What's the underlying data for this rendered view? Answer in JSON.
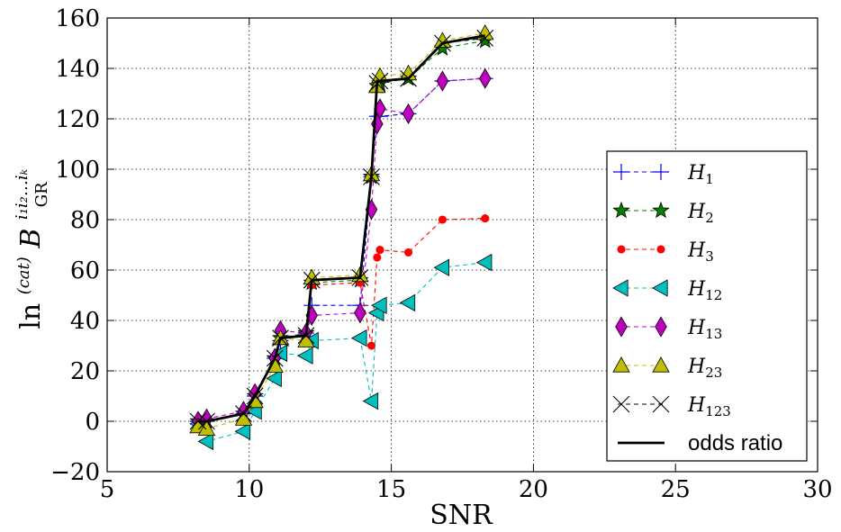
{
  "chart_data": {
    "type": "line",
    "xlabel": "SNR",
    "ylabel": "ln (cat) B_GR^(i1 i2 ... ik)",
    "ylabel_parts": {
      "ln": "ln",
      "sup": "(cat)",
      "B": "B",
      "sub": "GR",
      "index": "i₁i₂…iₖ"
    },
    "xlim": [
      5,
      30
    ],
    "ylim": [
      -20,
      160
    ],
    "xticks": [
      5,
      10,
      15,
      20,
      25,
      30
    ],
    "yticks": [
      -20,
      0,
      20,
      40,
      60,
      80,
      100,
      120,
      140,
      160
    ],
    "xtick_labels": [
      "5",
      "10",
      "15",
      "20",
      "25",
      "30"
    ],
    "ytick_labels": [
      "−20",
      "0",
      "20",
      "40",
      "60",
      "80",
      "100",
      "120",
      "140",
      "160"
    ],
    "grid": true,
    "legend_position": "lower-right",
    "x": [
      8.2,
      8.5,
      9.8,
      10.2,
      10.9,
      11.1,
      12.0,
      12.2,
      13.9,
      14.3,
      14.5,
      14.6,
      15.6,
      16.8,
      18.3
    ],
    "series": [
      {
        "name": "H1",
        "label_base": "H",
        "label_sub": "1",
        "marker": "plus",
        "color": "#0000ff",
        "values": [
          0,
          0,
          3,
          10,
          25,
          32,
          35,
          46,
          46,
          97,
          121,
          121,
          122,
          135,
          136
        ]
      },
      {
        "name": "H2",
        "label_base": "H",
        "label_sub": "2",
        "marker": "star",
        "color": "#007f00",
        "values": [
          0,
          0,
          3,
          10,
          25,
          33,
          35,
          55,
          56,
          97,
          133,
          134,
          136,
          148,
          151
        ]
      },
      {
        "name": "H3",
        "label_base": "H",
        "label_sub": "3",
        "marker": "dot",
        "color": "#ff0000",
        "values": [
          0,
          0,
          3,
          10,
          25,
          33,
          34,
          54,
          55,
          30,
          65,
          68,
          67,
          80,
          80.5
        ]
      },
      {
        "name": "H12",
        "label_base": "H",
        "label_sub": "12",
        "marker": "triangle-left",
        "color": "#00bfbf",
        "values": [
          -1,
          -8,
          -4,
          4,
          17,
          27,
          26,
          32,
          33,
          8,
          43,
          46,
          47,
          61,
          63
        ]
      },
      {
        "name": "H13",
        "label_base": "H",
        "label_sub": "13",
        "marker": "diamond",
        "color": "#bf00bf",
        "values": [
          0,
          1,
          4,
          11,
          25,
          36,
          35,
          42,
          43,
          84,
          118,
          124,
          122,
          135,
          136
        ]
      },
      {
        "name": "H23",
        "label_base": "H",
        "label_sub": "23",
        "marker": "triangle-up",
        "color": "#bfbf00",
        "values": [
          -2,
          -3,
          1,
          8,
          22,
          33,
          32,
          57,
          58,
          98,
          133,
          137,
          138,
          151,
          154
        ]
      },
      {
        "name": "H123",
        "label_base": "H",
        "label_sub": "123",
        "marker": "x",
        "color": "#000000",
        "values": [
          0,
          0,
          3,
          10,
          25,
          33,
          34,
          56,
          57,
          97,
          134,
          135,
          136,
          150,
          152
        ]
      },
      {
        "name": "odds ratio",
        "label_base": "odds ratio",
        "label_sub": "",
        "marker": "none",
        "color": "#000000",
        "values": [
          0,
          0,
          3,
          10,
          25,
          33,
          34,
          56,
          57,
          97,
          135,
          135,
          136,
          150,
          153
        ]
      }
    ]
  }
}
